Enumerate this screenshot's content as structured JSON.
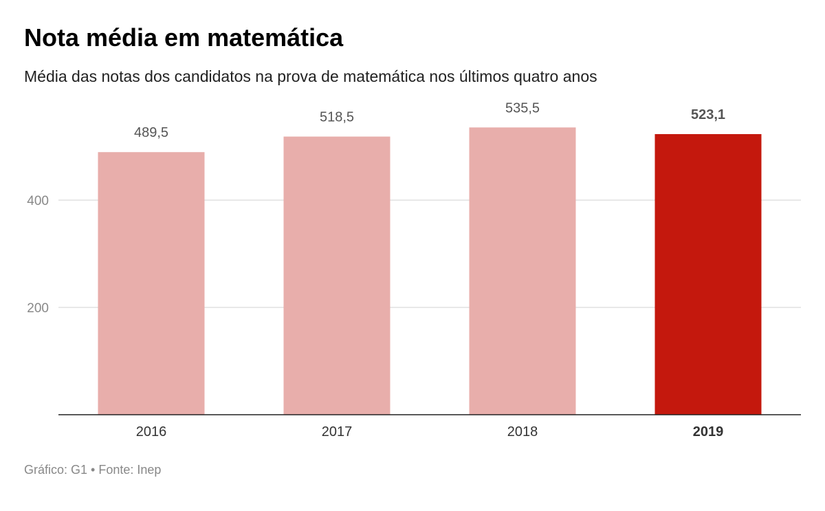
{
  "title": "Nota média em matemática",
  "subtitle": "Média das notas dos candidatos na prova de matemática nos últimos quatro anos",
  "footer": "Gráfico: G1 • Fonte: Inep",
  "colors": {
    "bar": "#e8aeab",
    "highlight": "#c4180d"
  },
  "chart_data": {
    "type": "bar",
    "title": "Nota média em matemática",
    "subtitle": "Média das notas dos candidatos na prova de matemática nos últimos quatro anos",
    "categories": [
      "2016",
      "2017",
      "2018",
      "2019"
    ],
    "values": [
      489.5,
      518.5,
      535.5,
      523.1
    ],
    "labels": [
      "489,5",
      "518,5",
      "535,5",
      "523,1"
    ],
    "highlight": "2019",
    "yticks": [
      "200",
      "400"
    ],
    "ytick_values": [
      200,
      400
    ],
    "ylim": [
      0,
      580
    ],
    "grid": true,
    "xlabel": "",
    "ylabel": ""
  }
}
